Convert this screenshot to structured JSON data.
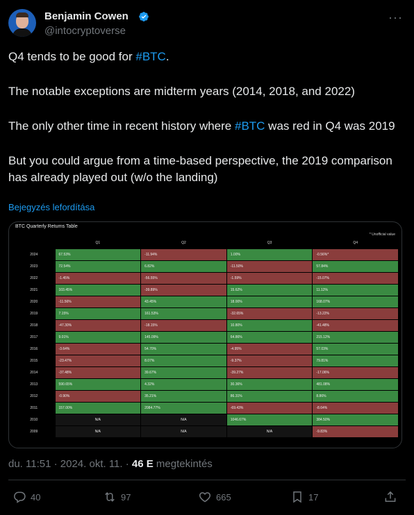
{
  "author": {
    "name": "Benjamin Cowen",
    "handle": "@intocryptoverse"
  },
  "tweet": {
    "line1_pre": "Q4 tends to be good for ",
    "line1_hash": "#BTC",
    "line1_post": ".",
    "line2": "The notable exceptions are midterm years (2014, 2018, and 2022)",
    "line3_pre": "The only other time in recent history where ",
    "line3_hash": "#BTC",
    "line3_post": " was red in Q4 was 2019",
    "line4": "But you could argue from a time-based perspective, the 2019 comparison has already played out (w/o the landing)",
    "translate_label": "Bejegyzés lefordítása"
  },
  "chart_data": {
    "type": "table",
    "title": "BTC Quarterly Returns Table",
    "note": "* Unofficial value",
    "columns": [
      "",
      "Q1",
      "Q2",
      "Q3",
      "Q4"
    ],
    "rows": [
      {
        "year": "2024",
        "q1": "67.53%",
        "q2": "-11.94%",
        "q3": "1.00%",
        "q4": "-0.56%*"
      },
      {
        "year": "2023",
        "q1": "72.54%",
        "q2": "6.82%",
        "q3": "-11.50%",
        "q4": "57.84%"
      },
      {
        "year": "2022",
        "q1": "-1.45%",
        "q2": "-56.55%",
        "q3": "-1.59%",
        "q4": "-15.07%"
      },
      {
        "year": "2021",
        "q1": "103.45%",
        "q2": "-39.89%",
        "q3": "15.62%",
        "q4": "11.12%"
      },
      {
        "year": "2020",
        "q1": "-11.56%",
        "q2": "43.45%",
        "q3": "18.00%",
        "q4": "168.07%"
      },
      {
        "year": "2019",
        "q1": "7.15%",
        "q2": "161.53%",
        "q3": "-32.65%",
        "q4": "-13.22%"
      },
      {
        "year": "2018",
        "q1": "-47.30%",
        "q2": "-18.15%",
        "q3": "10.80%",
        "q4": "-41.48%"
      },
      {
        "year": "2017",
        "q1": "9.01%",
        "q2": "145.09%",
        "q3": "64.86%",
        "q4": "215.12%"
      },
      {
        "year": "2016",
        "q1": "-3.64%",
        "q2": "54.70%",
        "q3": "-4.95%",
        "q4": "57.03%"
      },
      {
        "year": "2015",
        "q1": "-23.47%",
        "q2": "8.07%",
        "q3": "-9.37%",
        "q4": "79.81%"
      },
      {
        "year": "2014",
        "q1": "-37.48%",
        "q2": "39.67%",
        "q3": "-39.27%",
        "q4": "-17.06%"
      },
      {
        "year": "2013",
        "q1": "590.65%",
        "q2": "4.32%",
        "q3": "30.36%",
        "q4": "481.08%"
      },
      {
        "year": "2012",
        "q1": "-0.90%",
        "q2": "35.21%",
        "q3": "86.31%",
        "q4": "8.86%"
      },
      {
        "year": "2011",
        "q1": "157.00%",
        "q2": "2084.77%",
        "q3": "-69.43%",
        "q4": "-8.64%"
      },
      {
        "year": "2010",
        "q1": "N/A",
        "q2": "N/A",
        "q3": "1046.67%",
        "q4": "384.50%"
      },
      {
        "year": "2009",
        "q1": "N/A",
        "q2": "N/A",
        "q3": "N/A",
        "q4": "-9.83%"
      }
    ],
    "colors": {
      "positive": "#3a8a42",
      "negative": "#8a3d3c",
      "na": "#141414"
    }
  },
  "meta": {
    "time": "du. 11:51 · 2024. okt. 11. · ",
    "views_count": "46 E",
    "views_label": " megtekintés"
  },
  "actions": {
    "replies": "40",
    "reposts": "97",
    "likes": "665",
    "bookmarks": "17"
  },
  "icons": [
    "verified-badge-icon",
    "more-icon",
    "reply-icon",
    "repost-icon",
    "like-icon",
    "bookmark-icon",
    "share-icon"
  ],
  "colors": {
    "accent": "#1d9bf0",
    "muted": "#71767b",
    "background": "#000000"
  }
}
